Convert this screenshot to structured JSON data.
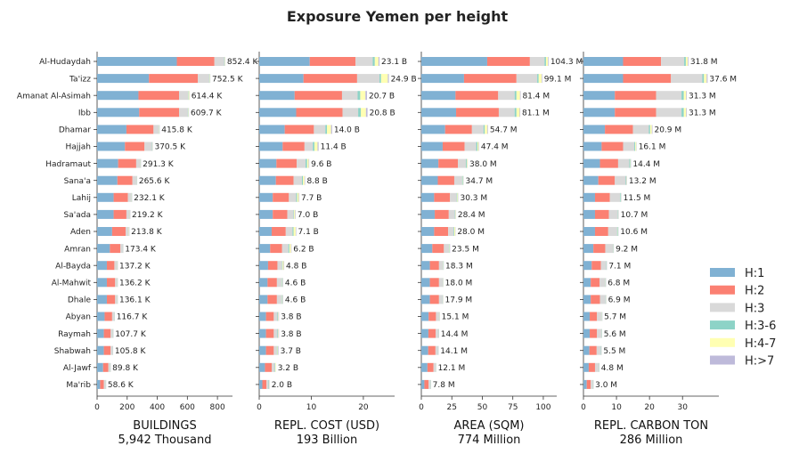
{
  "chart_data": {
    "type": "bar",
    "title": "Exposure Yemen per height",
    "categories": [
      "Al-Hudaydah",
      "Ta'izz",
      "Amanat Al-Asimah",
      "Ibb",
      "Dhamar",
      "Hajjah",
      "Hadramaut",
      "Sana'a",
      "Lahij",
      "Sa'ada",
      "Aden",
      "Amran",
      "Al-Bayda",
      "Al-Mahwit",
      "Dhale",
      "Abyan",
      "Raymah",
      "Shabwah",
      "Al-Jawf",
      "Ma'rib"
    ],
    "legend": {
      "position": "right",
      "entries": [
        {
          "name": "H:1",
          "color": "#80b1d3"
        },
        {
          "name": "H:2",
          "color": "#fb8072"
        },
        {
          "name": "H:3",
          "color": "#d9d9d9"
        },
        {
          "name": "H:3-6",
          "color": "#8dd3c7"
        },
        {
          "name": "H:4-7",
          "color": "#ffffb3"
        },
        {
          "name": "H:>7",
          "color": "#bebada"
        }
      ]
    },
    "panels": [
      {
        "xlabel": "BUILDINGS",
        "subtitle": "5,942 Thousand",
        "xlim": [
          0,
          900
        ],
        "xticks": [
          "0",
          "200",
          "400",
          "600",
          "800"
        ],
        "xtick_values": [
          0,
          200,
          400,
          600,
          800
        ],
        "totals": [
          "852.4 K",
          "752.5 K",
          "614.4 K",
          "609.7 K",
          "415.8 K",
          "370.5 K",
          "291.3 K",
          "265.6 K",
          "232.1 K",
          "219.2 K",
          "213.8 K",
          "173.4 K",
          "137.2 K",
          "136.2 K",
          "136.1 K",
          "116.7 K",
          "107.7 K",
          "105.8 K",
          "89.8 K",
          "58.6 K"
        ],
        "series": [
          {
            "name": "H:1",
            "values": [
              530,
              345,
              275,
              280,
              195,
              185,
              140,
              135,
              110,
              110,
              100,
              85,
              65,
              65,
              65,
              50,
              45,
              45,
              40,
              20
            ]
          },
          {
            "name": "H:2",
            "values": [
              250,
              325,
              270,
              265,
              180,
              130,
              120,
              100,
              95,
              85,
              90,
              70,
              50,
              55,
              55,
              50,
              45,
              45,
              35,
              25
            ]
          },
          {
            "name": "H:3",
            "values": [
              65,
              75,
              60,
              58,
              36,
              50,
              28,
              27,
              24,
              22,
              20,
              16,
              19,
              14,
              14,
              14,
              15,
              13,
              12,
              12
            ]
          },
          {
            "name": "H:3-6",
            "values": [
              3,
              3,
              3,
              3,
              2,
              2,
              1,
              1,
              1,
              1,
              1,
              1,
              1,
              1,
              1,
              1,
              1,
              1,
              1,
              1
            ]
          },
          {
            "name": "H:4-7",
            "values": [
              3,
              3,
              5,
              3,
              2,
              2,
              1,
              2,
              1,
              1,
              2,
              1,
              1,
              1,
              1,
              1,
              1,
              1,
              1,
              0.5
            ]
          },
          {
            "name": "H:>7",
            "values": [
              1,
              1,
              1,
              1,
              0.8,
              1,
              1,
              0.6,
              1,
              0.2,
              0.8,
              0.4,
              0.2,
              0.2,
              0.1,
              0.7,
              0.7,
              0.8,
              0.8,
              0.1
            ]
          }
        ]
      },
      {
        "xlabel": "REPL. COST (USD)",
        "subtitle": "193 Billion",
        "xlim": [
          0,
          26
        ],
        "xticks": [
          "0",
          "10",
          "20"
        ],
        "xtick_values": [
          0,
          10,
          20
        ],
        "totals": [
          "23.1 B",
          "24.9 B",
          "20.7 B",
          "20.8 B",
          "14.0 B",
          "11.4 B",
          "9.6 B",
          "8.8 B",
          "7.7 B",
          "7.0 B",
          "7.1 B",
          "6.2 B",
          "4.8 B",
          "4.6 B",
          "4.6 B",
          "3.8 B",
          "3.8 B",
          "3.7 B",
          "3.2 B",
          "2.0 B"
        ],
        "series": [
          {
            "name": "H:1",
            "values": [
              9.7,
              8.5,
              6.8,
              7.1,
              4.9,
              4.5,
              3.3,
              3.2,
              2.6,
              2.6,
              2.4,
              2.1,
              1.7,
              1.6,
              1.6,
              1.3,
              1.3,
              1.3,
              1.1,
              0.6
            ]
          },
          {
            "name": "H:2",
            "values": [
              8.8,
              10.3,
              9.1,
              8.9,
              5.6,
              4.2,
              3.9,
              3.4,
              3.1,
              2.8,
              2.7,
              2.3,
              1.8,
              1.8,
              1.8,
              1.5,
              1.5,
              1.5,
              1.3,
              0.8
            ]
          },
          {
            "name": "H:3",
            "values": [
              3.3,
              4.3,
              3.0,
              3.0,
              2.2,
              1.6,
              1.7,
              1.6,
              1.4,
              1.2,
              1.3,
              1.2,
              0.9,
              0.9,
              0.9,
              0.7,
              0.7,
              0.6,
              0.6,
              0.4
            ]
          },
          {
            "name": "H:3-6",
            "values": [
              0.4,
              0.3,
              0.5,
              0.5,
              0.3,
              0.3,
              0.3,
              0.2,
              0.2,
              0.1,
              0.2,
              0.2,
              0.1,
              0.1,
              0.1,
              0.1,
              0.1,
              0.1,
              0.1,
              0.1
            ]
          },
          {
            "name": "H:4-7",
            "values": [
              0.7,
              1.3,
              1.0,
              1.0,
              0.8,
              0.6,
              0.3,
              0.3,
              0.3,
              0.2,
              0.4,
              0.3,
              0.2,
              0.1,
              0.1,
              0.1,
              0.1,
              0.1,
              0.1,
              0.05
            ]
          },
          {
            "name": "H:>7",
            "values": [
              0.2,
              0.2,
              0.3,
              0.3,
              0.2,
              0.2,
              0.1,
              0.1,
              0.1,
              0.1,
              0.1,
              0.1,
              0.1,
              0.1,
              0.1,
              0.1,
              0.1,
              0.1,
              0.0,
              0.05
            ]
          }
        ]
      },
      {
        "xlabel": "AREA (SQM)",
        "subtitle": "774 Million",
        "xlim": [
          0,
          111
        ],
        "xticks": [
          "0",
          "25",
          "50",
          "75",
          "100"
        ],
        "xtick_values": [
          0,
          25,
          50,
          75,
          100
        ],
        "totals": [
          "104.3 M",
          "99.1 M",
          "81.4 M",
          "81.1 M",
          "54.7 M",
          "47.4 M",
          "38.0 M",
          "34.7 M",
          "30.3 M",
          "28.4 M",
          "28.0 M",
          "23.5 M",
          "18.3 M",
          "18.0 M",
          "17.9 M",
          "15.1 M",
          "14.4 M",
          "14.1 M",
          "12.1 M",
          "7.8 M"
        ],
        "series": [
          {
            "name": "H:1",
            "values": [
              54,
              35,
              28,
              28.5,
              19.5,
              17.5,
              14,
              13.5,
              10.5,
              11,
              10.5,
              9,
              7,
              7,
              7,
              6,
              5.8,
              5.6,
              5,
              2.5
            ]
          },
          {
            "name": "H:2",
            "values": [
              35,
              43,
              35,
              35,
              22,
              18,
              16,
              13.5,
              13,
              11.5,
              11.5,
              9.5,
              7.5,
              7.5,
              7.5,
              6,
              6,
              6,
              5,
              3.5
            ]
          },
          {
            "name": "H:3",
            "values": [
              12,
              17,
              13.5,
              13,
              9.5,
              9.5,
              6.5,
              6.5,
              5.5,
              5.0,
              4.5,
              4.2,
              3.2,
              3.0,
              2.9,
              2.6,
              2.2,
              2.1,
              1.7,
              1.4
            ]
          },
          {
            "name": "H:3-6",
            "values": [
              1.2,
              1.2,
              1.5,
              1.5,
              1.0,
              1.0,
              0.7,
              0.6,
              0.5,
              0.4,
              0.5,
              0.4,
              0.3,
              0.2,
              0.2,
              0.2,
              0.2,
              0.2,
              0.2,
              0.2
            ]
          },
          {
            "name": "H:4-7",
            "values": [
              1.6,
              2.4,
              2.9,
              2.6,
              2.2,
              1.0,
              0.6,
              0.4,
              0.6,
              0.4,
              0.8,
              0.3,
              0.2,
              0.2,
              0.2,
              0.2,
              0.1,
              0.1,
              0.1,
              0.1
            ]
          },
          {
            "name": "H:>7",
            "values": [
              0.5,
              0.5,
              0.5,
              0.5,
              0.5,
              0.4,
              0.2,
              0.2,
              0.2,
              0.1,
              0.2,
              0.1,
              0.1,
              0.1,
              0.1,
              0.1,
              0.1,
              0.1,
              0.1,
              0.1
            ]
          }
        ]
      },
      {
        "xlabel": "REPL. CARBON TON",
        "subtitle": "286 Million",
        "xlim": [
          0,
          41
        ],
        "xticks": [
          "0",
          "10",
          "20",
          "30"
        ],
        "xtick_values": [
          0,
          10,
          20,
          30
        ],
        "totals": [
          "31.8 M",
          "37.6 M",
          "31.3 M",
          "31.3 M",
          "20.9 M",
          "16.1 M",
          "14.4 M",
          "13.2 M",
          "11.5 M",
          "10.7 M",
          "10.6 M",
          "9.2 M",
          "7.1 M",
          "6.8 M",
          "6.9 M",
          "5.7 M",
          "5.6 M",
          "5.5 M",
          "4.8 M",
          "3.0 M"
        ],
        "series": [
          {
            "name": "H:1",
            "values": [
              12,
              12,
              9.5,
              9.5,
              6.5,
              5.5,
              5,
              4.5,
              3.5,
              3.5,
              3.5,
              3,
              2.5,
              2.2,
              2.2,
              1.9,
              1.9,
              1.8,
              1.6,
              1.0
            ]
          },
          {
            "name": "H:2",
            "values": [
              11.5,
              14.5,
              12.5,
              12.5,
              8.5,
              6.5,
              5.5,
              5,
              4.5,
              4.2,
              4.0,
              3.6,
              2.8,
              2.7,
              2.8,
              2.2,
              2.2,
              2.2,
              1.9,
              1.2
            ]
          },
          {
            "name": "H:3",
            "values": [
              7,
              9.5,
              7.7,
              7.7,
              4.8,
              3.4,
              3.4,
              3.3,
              3.1,
              2.7,
              2.7,
              2.3,
              1.6,
              1.7,
              1.7,
              1.4,
              1.3,
              1.3,
              1.1,
              0.7
            ]
          },
          {
            "name": "H:3-6",
            "values": [
              0.5,
              0.5,
              0.7,
              0.7,
              0.4,
              0.3,
              0.3,
              0.2,
              0.2,
              0.1,
              0.2,
              0.1,
              0.1,
              0.1,
              0.1,
              0.1,
              0.1,
              0.1,
              0.1,
              0.05
            ]
          },
          {
            "name": "H:4-7",
            "values": [
              0.6,
              0.8,
              0.7,
              0.7,
              0.5,
              0.3,
              0.1,
              0.1,
              0.1,
              0.1,
              0.1,
              0.1,
              0.05,
              0.05,
              0.05,
              0.05,
              0.05,
              0.05,
              0.05,
              0.03
            ]
          },
          {
            "name": "H:>7",
            "values": [
              0.2,
              0.3,
              0.2,
              0.2,
              0.2,
              0.1,
              0.1,
              0.1,
              0.1,
              0.1,
              0.1,
              0.1,
              0.05,
              0.05,
              0.05,
              0.05,
              0.05,
              0.05,
              0.05,
              0.02
            ]
          }
        ]
      }
    ]
  }
}
